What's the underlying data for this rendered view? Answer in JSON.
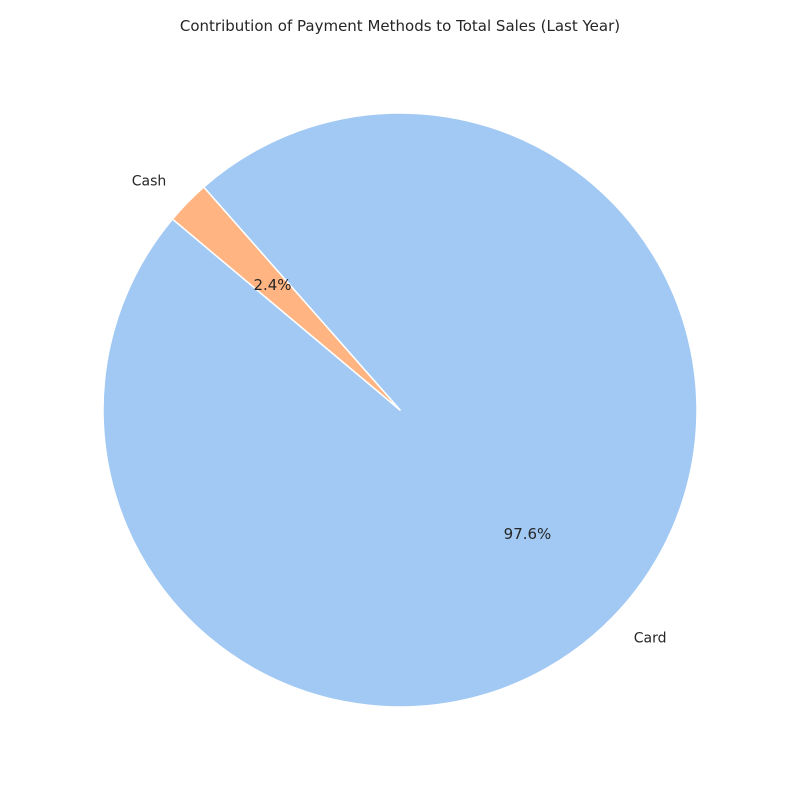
{
  "chart_data": {
    "type": "pie",
    "title": "Contribution of Payment Methods to Total Sales (Last Year)",
    "slices": [
      {
        "label": "Card",
        "value": 97.6,
        "percent_label": "97.6%",
        "color": "#a1c9f4"
      },
      {
        "label": "Cash",
        "value": 2.4,
        "percent_label": "2.4%",
        "color": "#ffb482"
      }
    ],
    "start_angle_deg": 140,
    "counterclockwise": true,
    "legend": "none"
  }
}
